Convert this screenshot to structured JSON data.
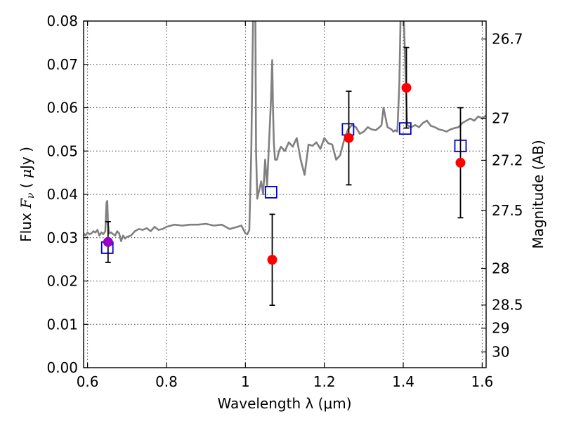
{
  "chart_data": {
    "type": "scatter",
    "xlabel": "Wavelength  λ (μm)",
    "ylabel_parts": [
      "Flux  ",
      "F",
      "ν",
      "  (  ",
      "μ",
      "Jy  )"
    ],
    "right_ylabel": "Magnitude (AB)",
    "xlim": [
      0.59,
      1.61
    ],
    "ylim": [
      0.0,
      0.08
    ],
    "x_ticks": [
      0.6,
      0.8,
      1.0,
      1.2,
      1.4,
      1.6
    ],
    "x_tick_labels": [
      "0.6",
      "0.8",
      "1",
      "1.2",
      "1.4",
      "1.6"
    ],
    "y_ticks": [
      0.0,
      0.01,
      0.02,
      0.03,
      0.04,
      0.05,
      0.06,
      0.07,
      0.08
    ],
    "y_tick_labels": [
      "0.00",
      "0.01",
      "0.02",
      "0.03",
      "0.04",
      "0.05",
      "0.06",
      "0.07",
      "0.08"
    ],
    "right_ticks": [
      {
        "mag": 26.7,
        "label": "26.7"
      },
      {
        "mag": 27.0,
        "label": "27"
      },
      {
        "mag": 27.2,
        "label": "27.2"
      },
      {
        "mag": 27.5,
        "label": "27.5"
      },
      {
        "mag": 28.0,
        "label": "28"
      },
      {
        "mag": 28.5,
        "label": "28.5"
      },
      {
        "mag": 29.0,
        "label": "29"
      },
      {
        "mag": 30.0,
        "label": "30"
      }
    ],
    "grid": true,
    "series": [
      {
        "kind": "line",
        "color": "#808080",
        "x": [
          0.59,
          0.595,
          0.6,
          0.605,
          0.61,
          0.615,
          0.62,
          0.625,
          0.63,
          0.635,
          0.64,
          0.645,
          0.648,
          0.65,
          0.652,
          0.655,
          0.66,
          0.665,
          0.67,
          0.675,
          0.68,
          0.685,
          0.69,
          0.695,
          0.7,
          0.71,
          0.72,
          0.73,
          0.74,
          0.75,
          0.76,
          0.77,
          0.78,
          0.79,
          0.8,
          0.82,
          0.84,
          0.86,
          0.88,
          0.9,
          0.92,
          0.94,
          0.96,
          0.98,
          0.99,
          1.0,
          1.005,
          1.01,
          1.015,
          1.02,
          1.023,
          1.025,
          1.027,
          1.03,
          1.035,
          1.04,
          1.045,
          1.05,
          1.055,
          1.06,
          1.065,
          1.068,
          1.07,
          1.072,
          1.075,
          1.08,
          1.085,
          1.09,
          1.1,
          1.11,
          1.12,
          1.13,
          1.14,
          1.15,
          1.16,
          1.17,
          1.18,
          1.19,
          1.2,
          1.21,
          1.22,
          1.23,
          1.24,
          1.25,
          1.26,
          1.27,
          1.28,
          1.29,
          1.3,
          1.31,
          1.32,
          1.33,
          1.34,
          1.345,
          1.35,
          1.36,
          1.37,
          1.375,
          1.38,
          1.385,
          1.39,
          1.395,
          1.4,
          1.41,
          1.42,
          1.43,
          1.44,
          1.45,
          1.46,
          1.47,
          1.48,
          1.49,
          1.5,
          1.51,
          1.52,
          1.53,
          1.54,
          1.55,
          1.56,
          1.57,
          1.58,
          1.59,
          1.6,
          1.61
        ],
        "y": [
          0.031,
          0.0305,
          0.0312,
          0.0308,
          0.031,
          0.0315,
          0.0312,
          0.0318,
          0.0305,
          0.0312,
          0.0308,
          0.0315,
          0.038,
          0.0385,
          0.033,
          0.031,
          0.0312,
          0.0308,
          0.0305,
          0.0315,
          0.031,
          0.0292,
          0.0305,
          0.0298,
          0.0302,
          0.0305,
          0.0315,
          0.032,
          0.0318,
          0.0322,
          0.0315,
          0.0325,
          0.0318,
          0.032,
          0.0325,
          0.033,
          0.0328,
          0.033,
          0.033,
          0.0332,
          0.0328,
          0.033,
          0.032,
          0.0325,
          0.0328,
          0.031,
          0.0308,
          0.0318,
          0.05,
          0.085,
          0.09,
          0.085,
          0.05,
          0.039,
          0.041,
          0.043,
          0.04,
          0.048,
          0.042,
          0.052,
          0.062,
          0.071,
          0.06,
          0.052,
          0.048,
          0.048,
          0.05,
          0.051,
          0.05,
          0.052,
          0.051,
          0.053,
          0.048,
          0.0445,
          0.0515,
          0.0512,
          0.052,
          0.0505,
          0.053,
          0.0518,
          0.0515,
          0.048,
          0.049,
          0.0525,
          0.055,
          0.056,
          0.0555,
          0.054,
          0.0545,
          0.0555,
          0.055,
          0.0548,
          0.0555,
          0.056,
          0.06,
          0.0555,
          0.055,
          0.0545,
          0.0548,
          0.0545,
          0.065,
          0.09,
          0.085,
          0.056,
          0.0555,
          0.056,
          0.0555,
          0.0565,
          0.057,
          0.0558,
          0.0555,
          0.055,
          0.0548,
          0.0545,
          0.055,
          0.0553,
          0.0555,
          0.0565,
          0.057,
          0.0575,
          0.057,
          0.058,
          0.0575,
          0.0582
        ]
      },
      {
        "kind": "squares",
        "color": "#0000cc",
        "x": [
          0.65,
          1.065,
          1.26,
          1.405,
          1.545
        ],
        "y": [
          0.0277,
          0.0405,
          0.055,
          0.0552,
          0.0512
        ]
      },
      {
        "kind": "points_with_errorbars",
        "color": "#ff0000",
        "x": [
          1.068,
          1.262,
          1.408,
          1.545
        ],
        "y": [
          0.0249,
          0.053,
          0.0646,
          0.0473
        ],
        "yerr": [
          0.0105,
          0.0108,
          0.0093,
          0.0127
        ]
      },
      {
        "kind": "points_with_errorbars",
        "color": "#9900cc",
        "x": [
          0.652
        ],
        "y": [
          0.029
        ],
        "yerr": [
          0.0047
        ]
      }
    ]
  }
}
